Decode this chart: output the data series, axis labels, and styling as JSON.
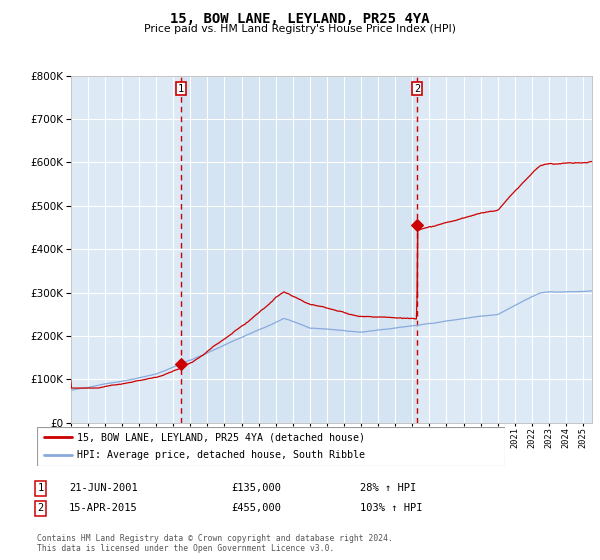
{
  "title": "15, BOW LANE, LEYLAND, PR25 4YA",
  "subtitle": "Price paid vs. HM Land Registry's House Price Index (HPI)",
  "hpi_label": "HPI: Average price, detached house, South Ribble",
  "property_label": "15, BOW LANE, LEYLAND, PR25 4YA (detached house)",
  "sale1_date": "21-JUN-2001",
  "sale1_price": 135000,
  "sale1_pct": "28%",
  "sale2_date": "15-APR-2015",
  "sale2_price": 455000,
  "sale2_pct": "103%",
  "line_color_property": "#cc0000",
  "line_color_hpi": "#88aadd",
  "vline_color": "#cc0000",
  "bg_color": "#ddeaf6",
  "bg_between": "#ccdff0",
  "grid_color": "#ffffff",
  "ylim": [
    0,
    800000
  ],
  "xlim_start": 1995.0,
  "xlim_end": 2025.5,
  "sale1_year": 2001.47,
  "sale2_year": 2015.29,
  "footnote": "Contains HM Land Registry data © Crown copyright and database right 2024.\nThis data is licensed under the Open Government Licence v3.0."
}
